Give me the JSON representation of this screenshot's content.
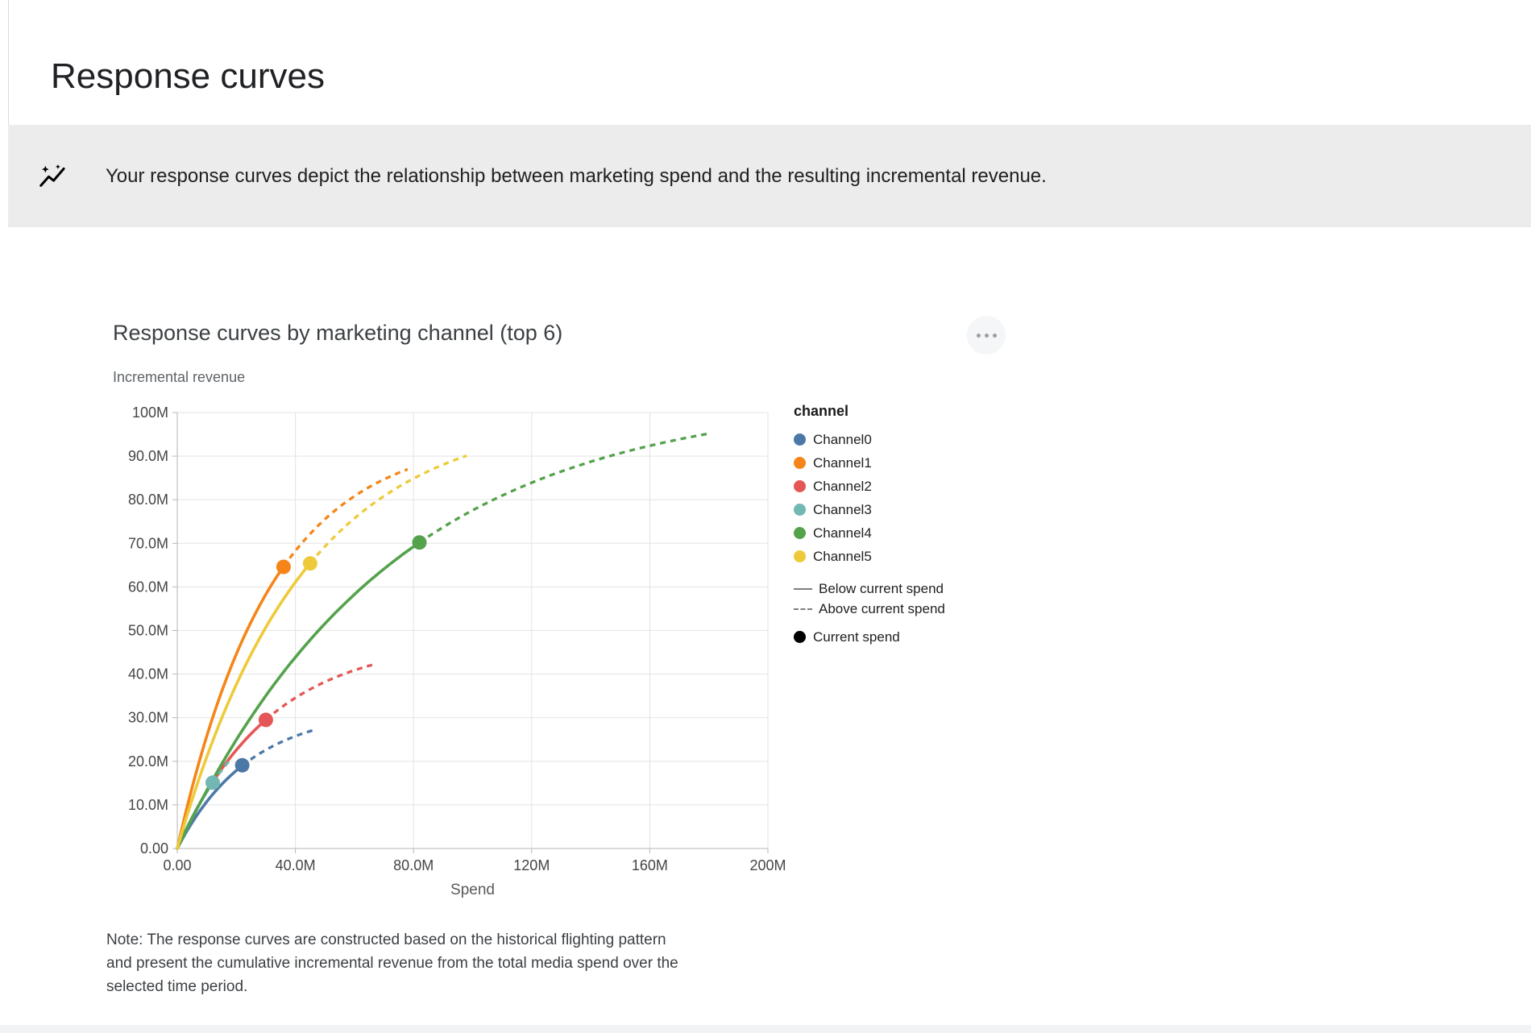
{
  "page": {
    "title": "Response curves"
  },
  "banner": {
    "icon": "insights-icon",
    "text": "Your response curves depict the relationship between marketing spend and the resulting incremental revenue."
  },
  "card": {
    "menu_icon": "more-options-icon",
    "note_lines": [
      "Note: The response curves are constructed based on the historical flighting pattern",
      "and present the cumulative incremental revenue from the total media spend over the",
      "selected time period."
    ]
  },
  "colors": {
    "grid": "#e3e3e3",
    "axis": "#b6b6b6",
    "banner_bg": "#ececec"
  },
  "chart_data": {
    "type": "line",
    "title": "Response curves by marketing channel (top 6)",
    "y_axis_title": "Incremental revenue",
    "xlabel": "Spend",
    "xlim_m": [
      0,
      200
    ],
    "ylim_m": [
      0,
      100
    ],
    "x_tick_values_m": [
      0,
      40,
      80,
      120,
      160,
      200
    ],
    "x_tick_labels": [
      "0.00",
      "40.0M",
      "80.0M",
      "120M",
      "160M",
      "200M"
    ],
    "y_tick_values_m": [
      0,
      10,
      20,
      30,
      40,
      50,
      60,
      70,
      80,
      90,
      100
    ],
    "y_tick_labels": [
      "0.00",
      "10.0M",
      "20.0M",
      "30.0M",
      "40.0M",
      "50.0M",
      "60.0M",
      "70.0M",
      "80.0M",
      "90.0M",
      "100M"
    ],
    "grid": true,
    "legend_title": "channel",
    "legend_position": "right",
    "curve_model": "revenue_m = saturation_m * (1 - exp(-rate * spend_m)); solid below current spend, dashed above",
    "series": [
      {
        "name": "Channel0",
        "color": "#4c78a8",
        "current_spend_m": 22,
        "current_revenue_m": 19.1,
        "curve_end_spend_m": 47,
        "curve_end_revenue_m": 27.3,
        "saturation_m": 32,
        "rate": 0.0409
      },
      {
        "name": "Channel1",
        "color": "#f58518",
        "current_spend_m": 36,
        "current_revenue_m": 64.6,
        "curve_end_spend_m": 78,
        "curve_end_revenue_m": 87.0,
        "saturation_m": 95,
        "rate": 0.0317
      },
      {
        "name": "Channel2",
        "color": "#e45756",
        "current_spend_m": 30,
        "current_revenue_m": 29.5,
        "curve_end_spend_m": 66,
        "curve_end_revenue_m": 42.0,
        "saturation_m": 48,
        "rate": 0.0318
      },
      {
        "name": "Channel3",
        "color": "#72b7b2",
        "current_spend_m": 12,
        "current_revenue_m": 15.1,
        "curve_end_spend_m": 18,
        "curve_end_revenue_m": 20.4,
        "saturation_m": 42,
        "rate": 0.037
      },
      {
        "name": "Channel4",
        "color": "#54a24b",
        "current_spend_m": 82,
        "current_revenue_m": 70.2,
        "curve_end_spend_m": 180,
        "curve_end_revenue_m": 95.1,
        "saturation_m": 104,
        "rate": 0.0137
      },
      {
        "name": "Channel5",
        "color": "#eeca3b",
        "current_spend_m": 45,
        "current_revenue_m": 65.4,
        "curve_end_spend_m": 98,
        "curve_end_revenue_m": 90.1,
        "saturation_m": 100,
        "rate": 0.0236
      }
    ],
    "style_legend": [
      {
        "label": "Below current spend",
        "style": "solid"
      },
      {
        "label": "Above current spend",
        "style": "dashed"
      }
    ],
    "marker_legend": {
      "label": "Current spend",
      "color": "#000000"
    }
  }
}
